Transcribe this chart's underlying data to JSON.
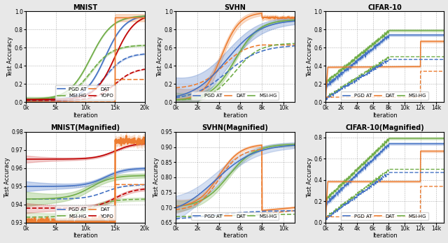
{
  "panels": [
    {
      "title": "MNIST",
      "xlabel": "Iteration",
      "ylabel": "Test Accuracy",
      "xlim": [
        0,
        20000
      ],
      "xticks": [
        0,
        5000,
        10000,
        15000,
        20000
      ],
      "xticklabels": [
        "0k",
        "5k",
        "10k",
        "15k",
        "20k"
      ],
      "ylim": [
        0.0,
        1.0
      ],
      "yticks": [
        0.0,
        0.2,
        0.4,
        0.6,
        0.8,
        1.0
      ]
    },
    {
      "title": "SVHN",
      "xlabel": "Iteration",
      "ylabel": "Test Accuracy",
      "xlim": [
        0,
        11000
      ],
      "xticks": [
        0,
        2000,
        4000,
        6000,
        8000,
        10000
      ],
      "xticklabels": [
        "0k",
        "2k",
        "4k",
        "6k",
        "8k",
        "10k"
      ],
      "ylim": [
        0.0,
        1.0
      ],
      "yticks": [
        0.0,
        0.2,
        0.4,
        0.6,
        0.8,
        1.0
      ]
    },
    {
      "title": "CIFAR-10",
      "xlabel": "Iteration",
      "ylabel": "Test Accuracy",
      "xlim": [
        0,
        15000
      ],
      "xticks": [
        0,
        2000,
        4000,
        6000,
        8000,
        10000,
        12000,
        14000
      ],
      "xticklabels": [
        "0k",
        "2k",
        "4k",
        "6k",
        "8k",
        "10k",
        "12k",
        "14k"
      ],
      "ylim": [
        0.0,
        1.0
      ],
      "yticks": [
        0.0,
        0.2,
        0.4,
        0.6,
        0.8,
        1.0
      ]
    },
    {
      "title": "MNIST(Magnified)",
      "xlabel": "Iteration",
      "ylabel": "Test Accuracy",
      "xlim": [
        0,
        20000
      ],
      "xticks": [
        0,
        5000,
        10000,
        15000,
        20000
      ],
      "xticklabels": [
        "0k",
        "5k",
        "10k",
        "15k",
        "20k"
      ],
      "ylim": [
        0.93,
        0.98
      ],
      "yticks": [
        0.93,
        0.94,
        0.95,
        0.96,
        0.97,
        0.98
      ]
    },
    {
      "title": "SVHN(Magnified)",
      "xlabel": "Iteration",
      "ylabel": "Test Accuracy",
      "xlim": [
        0,
        11000
      ],
      "xticks": [
        0,
        2000,
        4000,
        6000,
        8000,
        10000
      ],
      "xticklabels": [
        "0k",
        "2k",
        "4k",
        "6k",
        "8k",
        "10k"
      ],
      "ylim": [
        0.65,
        0.95
      ],
      "yticks": [
        0.65,
        0.7,
        0.75,
        0.8,
        0.85,
        0.9,
        0.95
      ]
    },
    {
      "title": "CIFAR-10(Magnified)",
      "xlabel": "Iteration",
      "ylabel": "Test Accuracy",
      "xlim": [
        0,
        15000
      ],
      "xticks": [
        0,
        2000,
        4000,
        6000,
        8000,
        10000,
        12000,
        14000
      ],
      "xticklabels": [
        "0k",
        "2k",
        "4k",
        "6k",
        "8k",
        "10k",
        "12k",
        "14k"
      ],
      "ylim": [
        0.0,
        0.85
      ],
      "yticks": [
        0.0,
        0.2,
        0.4,
        0.6,
        0.8
      ]
    }
  ],
  "colors": {
    "pgd": "#4472c4",
    "dat": "#ed7d31",
    "msi": "#70ad47",
    "yopo": "#c00000"
  },
  "bg_color": "#f0f0f0"
}
